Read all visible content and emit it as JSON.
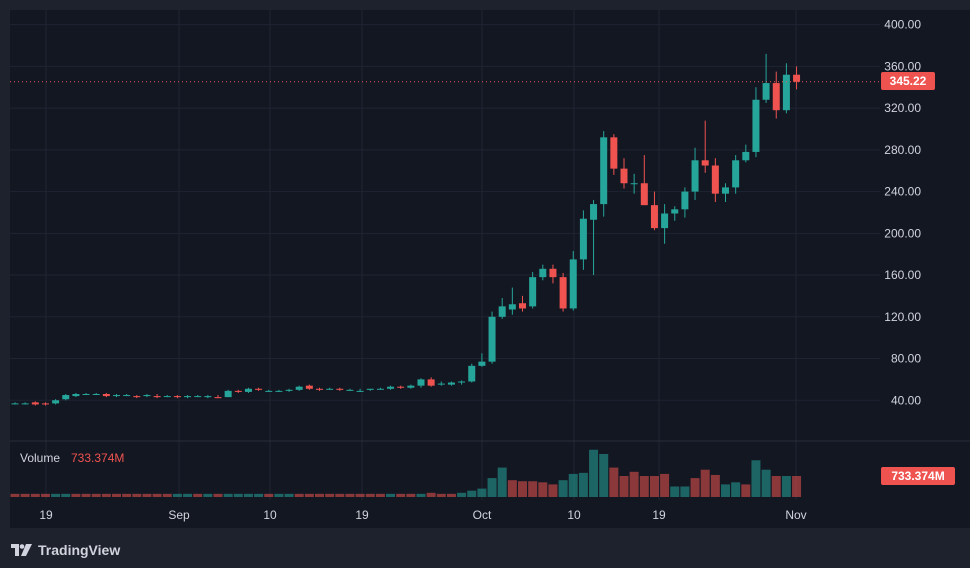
{
  "branding": {
    "name": "TradingView"
  },
  "colors": {
    "up": "#26a69a",
    "down": "#ef5350",
    "background": "#131722",
    "grid": "#1f2433",
    "text": "#d1d4dc"
  },
  "volume": {
    "label": "Volume",
    "value": "733.374M"
  },
  "last_price_label": "345.22",
  "last_volume_label": "733.374M",
  "chart_data": [
    {
      "type": "candlestick",
      "y_ticks": [
        "40.00",
        "80.00",
        "120.00",
        "160.00",
        "200.00",
        "240.00",
        "280.00",
        "320.00",
        "360.00",
        "400.00"
      ],
      "ylim": [
        0,
        400
      ],
      "x_ticks": [
        "19",
        "Sep",
        "10",
        "19",
        "Oct",
        "10",
        "19",
        "Nov"
      ],
      "last_price": 345.22,
      "grid": true,
      "candles": [
        {
          "o": 37,
          "h": 38,
          "l": 36,
          "c": 37
        },
        {
          "o": 37,
          "h": 38,
          "l": 36,
          "c": 37
        },
        {
          "o": 38,
          "h": 39,
          "l": 35,
          "c": 36
        },
        {
          "o": 37,
          "h": 38,
          "l": 35,
          "c": 36
        },
        {
          "o": 37,
          "h": 41,
          "l": 36,
          "c": 40
        },
        {
          "o": 41,
          "h": 46,
          "l": 40,
          "c": 45
        },
        {
          "o": 44,
          "h": 47,
          "l": 43,
          "c": 46
        },
        {
          "o": 46,
          "h": 47,
          "l": 45,
          "c": 46
        },
        {
          "o": 46,
          "h": 47,
          "l": 45,
          "c": 46
        },
        {
          "o": 46,
          "h": 47,
          "l": 43,
          "c": 44
        },
        {
          "o": 44,
          "h": 46,
          "l": 43,
          "c": 45
        },
        {
          "o": 45,
          "h": 46,
          "l": 44,
          "c": 45
        },
        {
          "o": 44,
          "h": 45,
          "l": 42,
          "c": 43
        },
        {
          "o": 44,
          "h": 46,
          "l": 43,
          "c": 45
        },
        {
          "o": 44,
          "h": 46,
          "l": 42,
          "c": 43
        },
        {
          "o": 44,
          "h": 45,
          "l": 43,
          "c": 44
        },
        {
          "o": 44,
          "h": 45,
          "l": 42,
          "c": 43
        },
        {
          "o": 43,
          "h": 45,
          "l": 42,
          "c": 44
        },
        {
          "o": 44,
          "h": 45,
          "l": 43,
          "c": 44
        },
        {
          "o": 43,
          "h": 45,
          "l": 42,
          "c": 44
        },
        {
          "o": 43,
          "h": 45,
          "l": 42,
          "c": 42
        },
        {
          "o": 43,
          "h": 50,
          "l": 43,
          "c": 49
        },
        {
          "o": 49,
          "h": 50,
          "l": 47,
          "c": 48
        },
        {
          "o": 48,
          "h": 52,
          "l": 47,
          "c": 51
        },
        {
          "o": 51,
          "h": 52,
          "l": 49,
          "c": 50
        },
        {
          "o": 49,
          "h": 50,
          "l": 48,
          "c": 49
        },
        {
          "o": 49,
          "h": 50,
          "l": 48,
          "c": 49
        },
        {
          "o": 49,
          "h": 51,
          "l": 48,
          "c": 50
        },
        {
          "o": 50,
          "h": 54,
          "l": 49,
          "c": 53
        },
        {
          "o": 54,
          "h": 55,
          "l": 50,
          "c": 51
        },
        {
          "o": 51,
          "h": 52,
          "l": 49,
          "c": 50
        },
        {
          "o": 51,
          "h": 52,
          "l": 50,
          "c": 51
        },
        {
          "o": 51,
          "h": 52,
          "l": 49,
          "c": 50
        },
        {
          "o": 50,
          "h": 51,
          "l": 49,
          "c": 50
        },
        {
          "o": 49,
          "h": 51,
          "l": 48,
          "c": 49
        },
        {
          "o": 50,
          "h": 51,
          "l": 49,
          "c": 51
        },
        {
          "o": 51,
          "h": 52,
          "l": 50,
          "c": 51
        },
        {
          "o": 51,
          "h": 54,
          "l": 50,
          "c": 53
        },
        {
          "o": 53,
          "h": 54,
          "l": 51,
          "c": 52
        },
        {
          "o": 52,
          "h": 55,
          "l": 51,
          "c": 54
        },
        {
          "o": 54,
          "h": 61,
          "l": 52,
          "c": 60
        },
        {
          "o": 60,
          "h": 62,
          "l": 53,
          "c": 54
        },
        {
          "o": 55,
          "h": 58,
          "l": 54,
          "c": 56
        },
        {
          "o": 55,
          "h": 58,
          "l": 54,
          "c": 57
        },
        {
          "o": 57,
          "h": 59,
          "l": 55,
          "c": 58
        },
        {
          "o": 58,
          "h": 75,
          "l": 57,
          "c": 73
        },
        {
          "o": 73,
          "h": 85,
          "l": 72,
          "c": 77
        },
        {
          "o": 77,
          "h": 125,
          "l": 75,
          "c": 120
        },
        {
          "o": 120,
          "h": 138,
          "l": 118,
          "c": 130
        },
        {
          "o": 127,
          "h": 148,
          "l": 122,
          "c": 132
        },
        {
          "o": 133,
          "h": 140,
          "l": 125,
          "c": 128
        },
        {
          "o": 130,
          "h": 163,
          "l": 128,
          "c": 158
        },
        {
          "o": 158,
          "h": 170,
          "l": 155,
          "c": 166
        },
        {
          "o": 166,
          "h": 170,
          "l": 152,
          "c": 158
        },
        {
          "o": 158,
          "h": 162,
          "l": 125,
          "c": 128
        },
        {
          "o": 128,
          "h": 183,
          "l": 126,
          "c": 175
        },
        {
          "o": 175,
          "h": 222,
          "l": 165,
          "c": 214
        },
        {
          "o": 213,
          "h": 232,
          "l": 160,
          "c": 228
        },
        {
          "o": 228,
          "h": 298,
          "l": 216,
          "c": 292
        },
        {
          "o": 292,
          "h": 295,
          "l": 256,
          "c": 262
        },
        {
          "o": 262,
          "h": 272,
          "l": 243,
          "c": 248
        },
        {
          "o": 248,
          "h": 257,
          "l": 238,
          "c": 248
        },
        {
          "o": 248,
          "h": 275,
          "l": 227,
          "c": 227
        },
        {
          "o": 227,
          "h": 240,
          "l": 203,
          "c": 205
        },
        {
          "o": 205,
          "h": 228,
          "l": 190,
          "c": 219
        },
        {
          "o": 219,
          "h": 226,
          "l": 212,
          "c": 223
        },
        {
          "o": 223,
          "h": 244,
          "l": 215,
          "c": 240
        },
        {
          "o": 240,
          "h": 282,
          "l": 232,
          "c": 270
        },
        {
          "o": 270,
          "h": 308,
          "l": 258,
          "c": 265
        },
        {
          "o": 265,
          "h": 272,
          "l": 230,
          "c": 238
        },
        {
          "o": 238,
          "h": 248,
          "l": 230,
          "c": 244
        },
        {
          "o": 244,
          "h": 275,
          "l": 238,
          "c": 270
        },
        {
          "o": 270,
          "h": 285,
          "l": 268,
          "c": 278
        },
        {
          "o": 278,
          "h": 340,
          "l": 273,
          "c": 328
        },
        {
          "o": 328,
          "h": 372,
          "l": 325,
          "c": 344
        },
        {
          "o": 344,
          "h": 355,
          "l": 310,
          "c": 318
        },
        {
          "o": 318,
          "h": 363,
          "l": 315,
          "c": 352
        },
        {
          "o": 352,
          "h": 360,
          "l": 338,
          "c": 345.22
        }
      ],
      "volume": [
        {
          "v": 3,
          "up": false
        },
        {
          "v": 3,
          "up": false
        },
        {
          "v": 3,
          "up": false
        },
        {
          "v": 3,
          "up": false
        },
        {
          "v": 3,
          "up": true
        },
        {
          "v": 3,
          "up": true
        },
        {
          "v": 3,
          "up": false
        },
        {
          "v": 3,
          "up": false
        },
        {
          "v": 3,
          "up": false
        },
        {
          "v": 3,
          "up": false
        },
        {
          "v": 3,
          "up": false
        },
        {
          "v": 3,
          "up": false
        },
        {
          "v": 3,
          "up": false
        },
        {
          "v": 3,
          "up": false
        },
        {
          "v": 3,
          "up": false
        },
        {
          "v": 3,
          "up": false
        },
        {
          "v": 3,
          "up": true
        },
        {
          "v": 3,
          "up": true
        },
        {
          "v": 3,
          "up": false
        },
        {
          "v": 3,
          "up": true
        },
        {
          "v": 3,
          "up": false
        },
        {
          "v": 3,
          "up": true
        },
        {
          "v": 3,
          "up": true
        },
        {
          "v": 3,
          "up": true
        },
        {
          "v": 3,
          "up": true
        },
        {
          "v": 3,
          "up": false
        },
        {
          "v": 3,
          "up": true
        },
        {
          "v": 3,
          "up": true
        },
        {
          "v": 3,
          "up": false
        },
        {
          "v": 3,
          "up": false
        },
        {
          "v": 3,
          "up": false
        },
        {
          "v": 3,
          "up": false
        },
        {
          "v": 3,
          "up": false
        },
        {
          "v": 3,
          "up": false
        },
        {
          "v": 3,
          "up": false
        },
        {
          "v": 3,
          "up": false
        },
        {
          "v": 3,
          "up": false
        },
        {
          "v": 3,
          "up": true
        },
        {
          "v": 3,
          "up": false
        },
        {
          "v": 3,
          "up": false
        },
        {
          "v": 3,
          "up": true
        },
        {
          "v": 4,
          "up": false
        },
        {
          "v": 3,
          "up": false
        },
        {
          "v": 3,
          "up": false
        },
        {
          "v": 4,
          "up": true
        },
        {
          "v": 6,
          "up": true
        },
        {
          "v": 8,
          "up": true
        },
        {
          "v": 18,
          "up": true
        },
        {
          "v": 28,
          "up": true
        },
        {
          "v": 16,
          "up": false
        },
        {
          "v": 15,
          "up": false
        },
        {
          "v": 15,
          "up": false
        },
        {
          "v": 14,
          "up": false
        },
        {
          "v": 12,
          "up": false
        },
        {
          "v": 16,
          "up": true
        },
        {
          "v": 22,
          "up": true
        },
        {
          "v": 23,
          "up": true
        },
        {
          "v": 45,
          "up": true
        },
        {
          "v": 41,
          "up": true
        },
        {
          "v": 28,
          "up": false
        },
        {
          "v": 20,
          "up": false
        },
        {
          "v": 24,
          "up": false
        },
        {
          "v": 20,
          "up": false
        },
        {
          "v": 20,
          "up": false
        },
        {
          "v": 22,
          "up": false
        },
        {
          "v": 10,
          "up": true
        },
        {
          "v": 10,
          "up": true
        },
        {
          "v": 18,
          "up": false
        },
        {
          "v": 26,
          "up": false
        },
        {
          "v": 21,
          "up": false
        },
        {
          "v": 12,
          "up": true
        },
        {
          "v": 14,
          "up": true
        },
        {
          "v": 12,
          "up": false
        },
        {
          "v": 35,
          "up": true
        },
        {
          "v": 26,
          "up": true
        },
        {
          "v": 20,
          "up": false
        },
        {
          "v": 20,
          "up": true
        },
        {
          "v": 20,
          "up": false
        }
      ]
    }
  ]
}
